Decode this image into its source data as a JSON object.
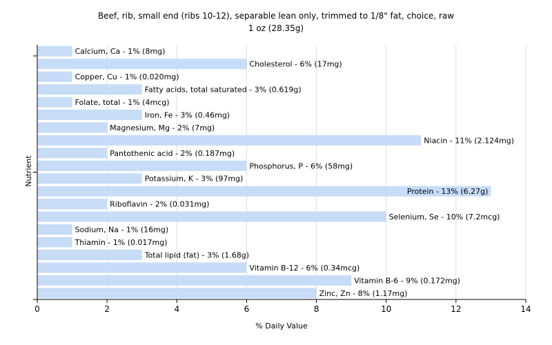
{
  "chart_data": {
    "type": "bar",
    "orientation": "horizontal",
    "title": "Beef, rib, small end (ribs 10-12), separable lean only, trimmed to 1/8\" fat, choice, raw",
    "subtitle": "1 oz (28.35g)",
    "xlabel": "% Daily Value",
    "ylabel": "Nutrient",
    "xlim": [
      0,
      14
    ],
    "xticks": [
      0,
      2,
      4,
      6,
      8,
      10,
      12,
      14
    ],
    "grid": "vertical",
    "colors": {
      "bar": "#c6dcf7",
      "grid": "#dddddd",
      "axis": "#000000"
    },
    "categories": [
      "Calcium, Ca",
      "Cholesterol",
      "Copper, Cu",
      "Fatty acids, total saturated",
      "Folate, total",
      "Iron, Fe",
      "Magnesium, Mg",
      "Niacin",
      "Pantothenic acid",
      "Phosphorus, P",
      "Potassium, K",
      "Protein",
      "Riboflavin",
      "Selenium, Se",
      "Sodium, Na",
      "Thiamin",
      "Total lipid (fat)",
      "Vitamin B-12",
      "Vitamin B-6",
      "Zinc, Zn"
    ],
    "values": [
      1,
      6,
      1,
      3,
      1,
      3,
      2,
      11,
      2,
      6,
      3,
      13,
      2,
      10,
      1,
      1,
      3,
      6,
      9,
      8
    ],
    "labels": [
      "Calcium, Ca - 1% (8mg)",
      "Cholesterol - 6% (17mg)",
      "Copper, Cu - 1% (0.020mg)",
      "Fatty acids, total saturated - 3% (0.619g)",
      "Folate, total - 1% (4mcg)",
      "Iron, Fe - 3% (0.46mg)",
      "Magnesium, Mg - 2% (7mg)",
      "Niacin - 11% (2.124mg)",
      "Pantothenic acid - 2% (0.187mg)",
      "Phosphorus, P - 6% (58mg)",
      "Potassium, K - 3% (97mg)",
      "Protein - 13% (6.27g)",
      "Riboflavin - 2% (0.031mg)",
      "Selenium, Se - 10% (7.2mcg)",
      "Sodium, Na - 1% (16mg)",
      "Thiamin - 1% (0.017mg)",
      "Total lipid (fat) - 3% (1.68g)",
      "Vitamin B-12 - 6% (0.34mcg)",
      "Vitamin B-6 - 9% (0.172mg)",
      "Zinc, Zn - 8% (1.17mg)"
    ]
  }
}
